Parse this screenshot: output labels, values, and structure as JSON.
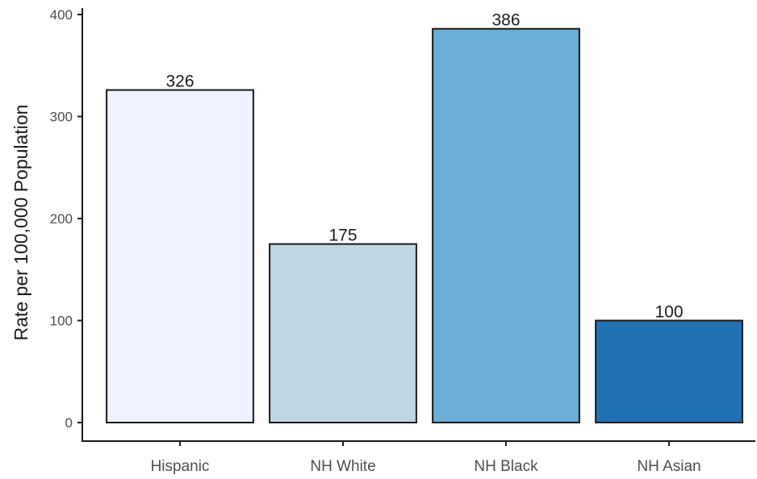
{
  "chart_data": {
    "type": "bar",
    "categories": [
      "Hispanic",
      "NH White",
      "NH Black",
      "NH Asian"
    ],
    "values": [
      326,
      175,
      386,
      100
    ],
    "data_labels": [
      "326",
      "175",
      "386",
      "100"
    ],
    "colors": [
      "#eff3ff",
      "#bdd7e7",
      "#6baed6",
      "#2171b5"
    ],
    "bar_outline_color": "#1a1a1a",
    "axis_color": "#1a1a1a",
    "tick_label_color": "#4d4d4d",
    "title": "",
    "xlabel": "",
    "ylabel": "Rate per 100,000 Population",
    "ylim": [
      0,
      400
    ],
    "yticks": [
      0,
      100,
      200,
      300,
      400
    ],
    "ytick_labels": [
      "0",
      "100",
      "200",
      "300",
      "400"
    ],
    "grid": false,
    "legend": "none"
  }
}
